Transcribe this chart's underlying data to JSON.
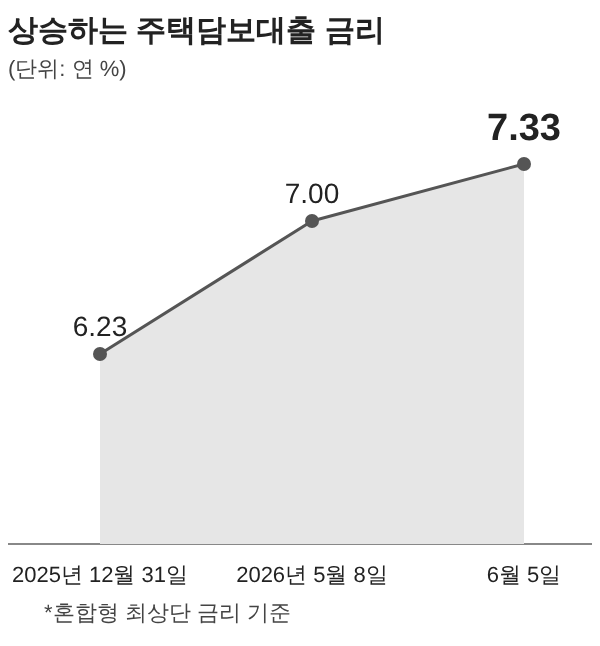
{
  "chart_data": {
    "type": "area",
    "title": "상승하는 주택담보대출 금리",
    "subtitle": "(단위: 연 %)",
    "categories": [
      "2025년 12월 31일",
      "2026년 5월 8일",
      "6월 5일"
    ],
    "series": [
      {
        "color": "#555555",
        "values": [
          6.23,
          7.0,
          7.33
        ],
        "value_labels": [
          "6.23",
          "7.00",
          "7.33"
        ]
      }
    ],
    "marker": "circle",
    "line_style": "solid",
    "annotations": [
      "*혼합형 최상단 금리 기준"
    ]
  }
}
